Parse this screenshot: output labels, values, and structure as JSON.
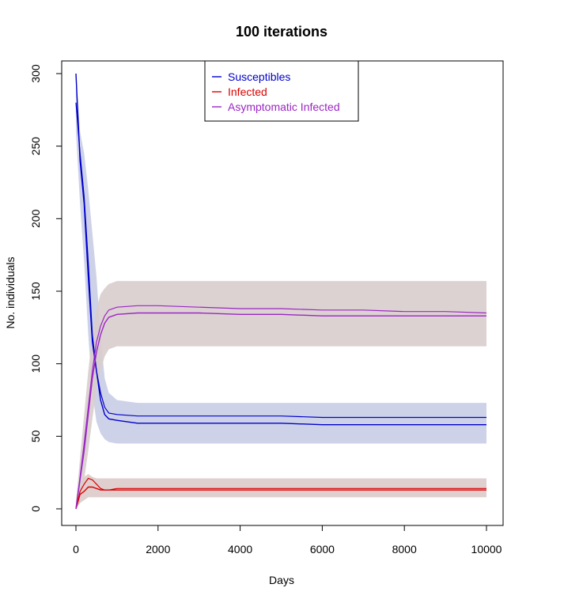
{
  "chart_data": {
    "type": "line",
    "title": "100  iterations",
    "xlabel": "Days",
    "ylabel": "No. individuals",
    "xlim": [
      0,
      10000
    ],
    "ylim": [
      0,
      300
    ],
    "xticks": [
      0,
      2000,
      4000,
      6000,
      8000,
      10000
    ],
    "yticks": [
      0,
      50,
      100,
      150,
      200,
      250,
      300
    ],
    "grid": false,
    "legend_position": "top-center",
    "series": [
      {
        "name": "Susceptibles",
        "color": "#0000cc",
        "band_color": "#c9cde6",
        "x": [
          0,
          100,
          200,
          300,
          400,
          500,
          600,
          700,
          800,
          1000,
          1500,
          2000,
          3000,
          4000,
          5000,
          6000,
          7000,
          8000,
          9000,
          10000
        ],
        "mean": [
          300,
          240,
          210,
          160,
          115,
          95,
          75,
          65,
          62,
          61,
          59,
          59,
          59,
          59,
          59,
          58,
          58,
          58,
          58,
          58
        ],
        "median": [
          280,
          245,
          215,
          170,
          120,
          95,
          80,
          70,
          66,
          65,
          64,
          64,
          64,
          64,
          64,
          63,
          63,
          63,
          63,
          63
        ],
        "lower": [
          260,
          210,
          170,
          120,
          80,
          60,
          52,
          48,
          46,
          45,
          45,
          45,
          45,
          45,
          45,
          45,
          45,
          45,
          45,
          45
        ],
        "upper": [
          300,
          260,
          245,
          220,
          190,
          160,
          120,
          90,
          80,
          75,
          73,
          73,
          73,
          73,
          73,
          73,
          73,
          73,
          73,
          73
        ]
      },
      {
        "name": "Infected",
        "color": "#dd0000",
        "band_color": "#dccaca",
        "x": [
          0,
          100,
          200,
          300,
          400,
          500,
          600,
          700,
          800,
          1000,
          1500,
          2000,
          3000,
          4000,
          5000,
          6000,
          7000,
          8000,
          9000,
          10000
        ],
        "mean": [
          0,
          10,
          12,
          15,
          15,
          14,
          13,
          13,
          13,
          13,
          13,
          13,
          13,
          13,
          13,
          13,
          13,
          13,
          13,
          13
        ],
        "median": [
          0,
          12,
          17,
          21,
          20,
          17,
          14,
          13,
          13,
          14,
          14,
          14,
          14,
          14,
          14,
          14,
          14,
          14,
          14,
          14
        ],
        "lower": [
          0,
          4,
          6,
          8,
          8,
          8,
          8,
          8,
          8,
          8,
          8,
          8,
          8,
          8,
          8,
          8,
          8,
          8,
          8,
          8
        ],
        "upper": [
          5,
          18,
          22,
          24,
          22,
          21,
          21,
          21,
          21,
          21,
          21,
          21,
          21,
          21,
          21,
          21,
          21,
          21,
          21,
          21
        ]
      },
      {
        "name": "Asymptomatic Infected",
        "color": "#9a26c4",
        "band_color": "#d9cdcd",
        "x": [
          0,
          100,
          200,
          300,
          400,
          500,
          600,
          700,
          800,
          1000,
          1500,
          2000,
          3000,
          4000,
          5000,
          6000,
          7000,
          8000,
          9000,
          10000
        ],
        "mean": [
          0,
          20,
          40,
          65,
          90,
          108,
          120,
          128,
          132,
          134,
          135,
          135,
          135,
          134,
          134,
          133,
          133,
          133,
          133,
          133
        ],
        "median": [
          0,
          22,
          45,
          70,
          95,
          115,
          126,
          133,
          137,
          139,
          140,
          140,
          139,
          138,
          138,
          137,
          137,
          136,
          136,
          135
        ],
        "lower": [
          0,
          5,
          20,
          40,
          62,
          82,
          95,
          105,
          110,
          112,
          112,
          112,
          112,
          112,
          112,
          112,
          112,
          112,
          112,
          112
        ],
        "upper": [
          5,
          35,
          65,
          95,
          120,
          138,
          148,
          152,
          155,
          157,
          157,
          157,
          157,
          157,
          157,
          157,
          157,
          157,
          157,
          157
        ]
      }
    ]
  }
}
